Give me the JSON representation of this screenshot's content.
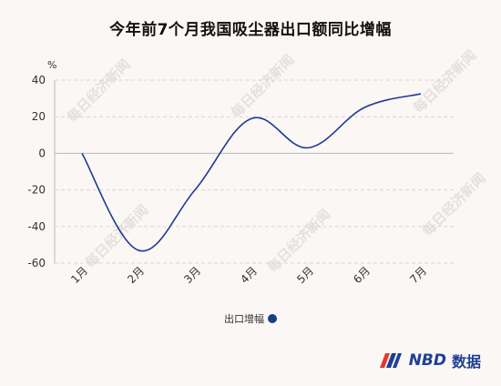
{
  "colors": {
    "series": "#1f3a93",
    "grid": "#d9d6d3",
    "background": "#faf7f5"
  },
  "brand": {
    "name": "NBD",
    "name_cn": "数据",
    "watermark": "每日经济新闻"
  },
  "chart_data": {
    "type": "line",
    "title": "今年前7个月我国吸尘器出口额同比增幅",
    "ylabel": "%",
    "xlabel": "",
    "categories": [
      "1月",
      "2月",
      "3月",
      "4月",
      "5月",
      "6月",
      "7月"
    ],
    "ylim": [
      -60,
      40
    ],
    "yticks": [
      40,
      20,
      0,
      -20,
      -40,
      -60
    ],
    "grid": true,
    "legend_position": "bottom",
    "series": [
      {
        "name": "出口增幅",
        "values": [
          0,
          -53,
          -20,
          19,
          3,
          25,
          32.5
        ]
      }
    ]
  }
}
